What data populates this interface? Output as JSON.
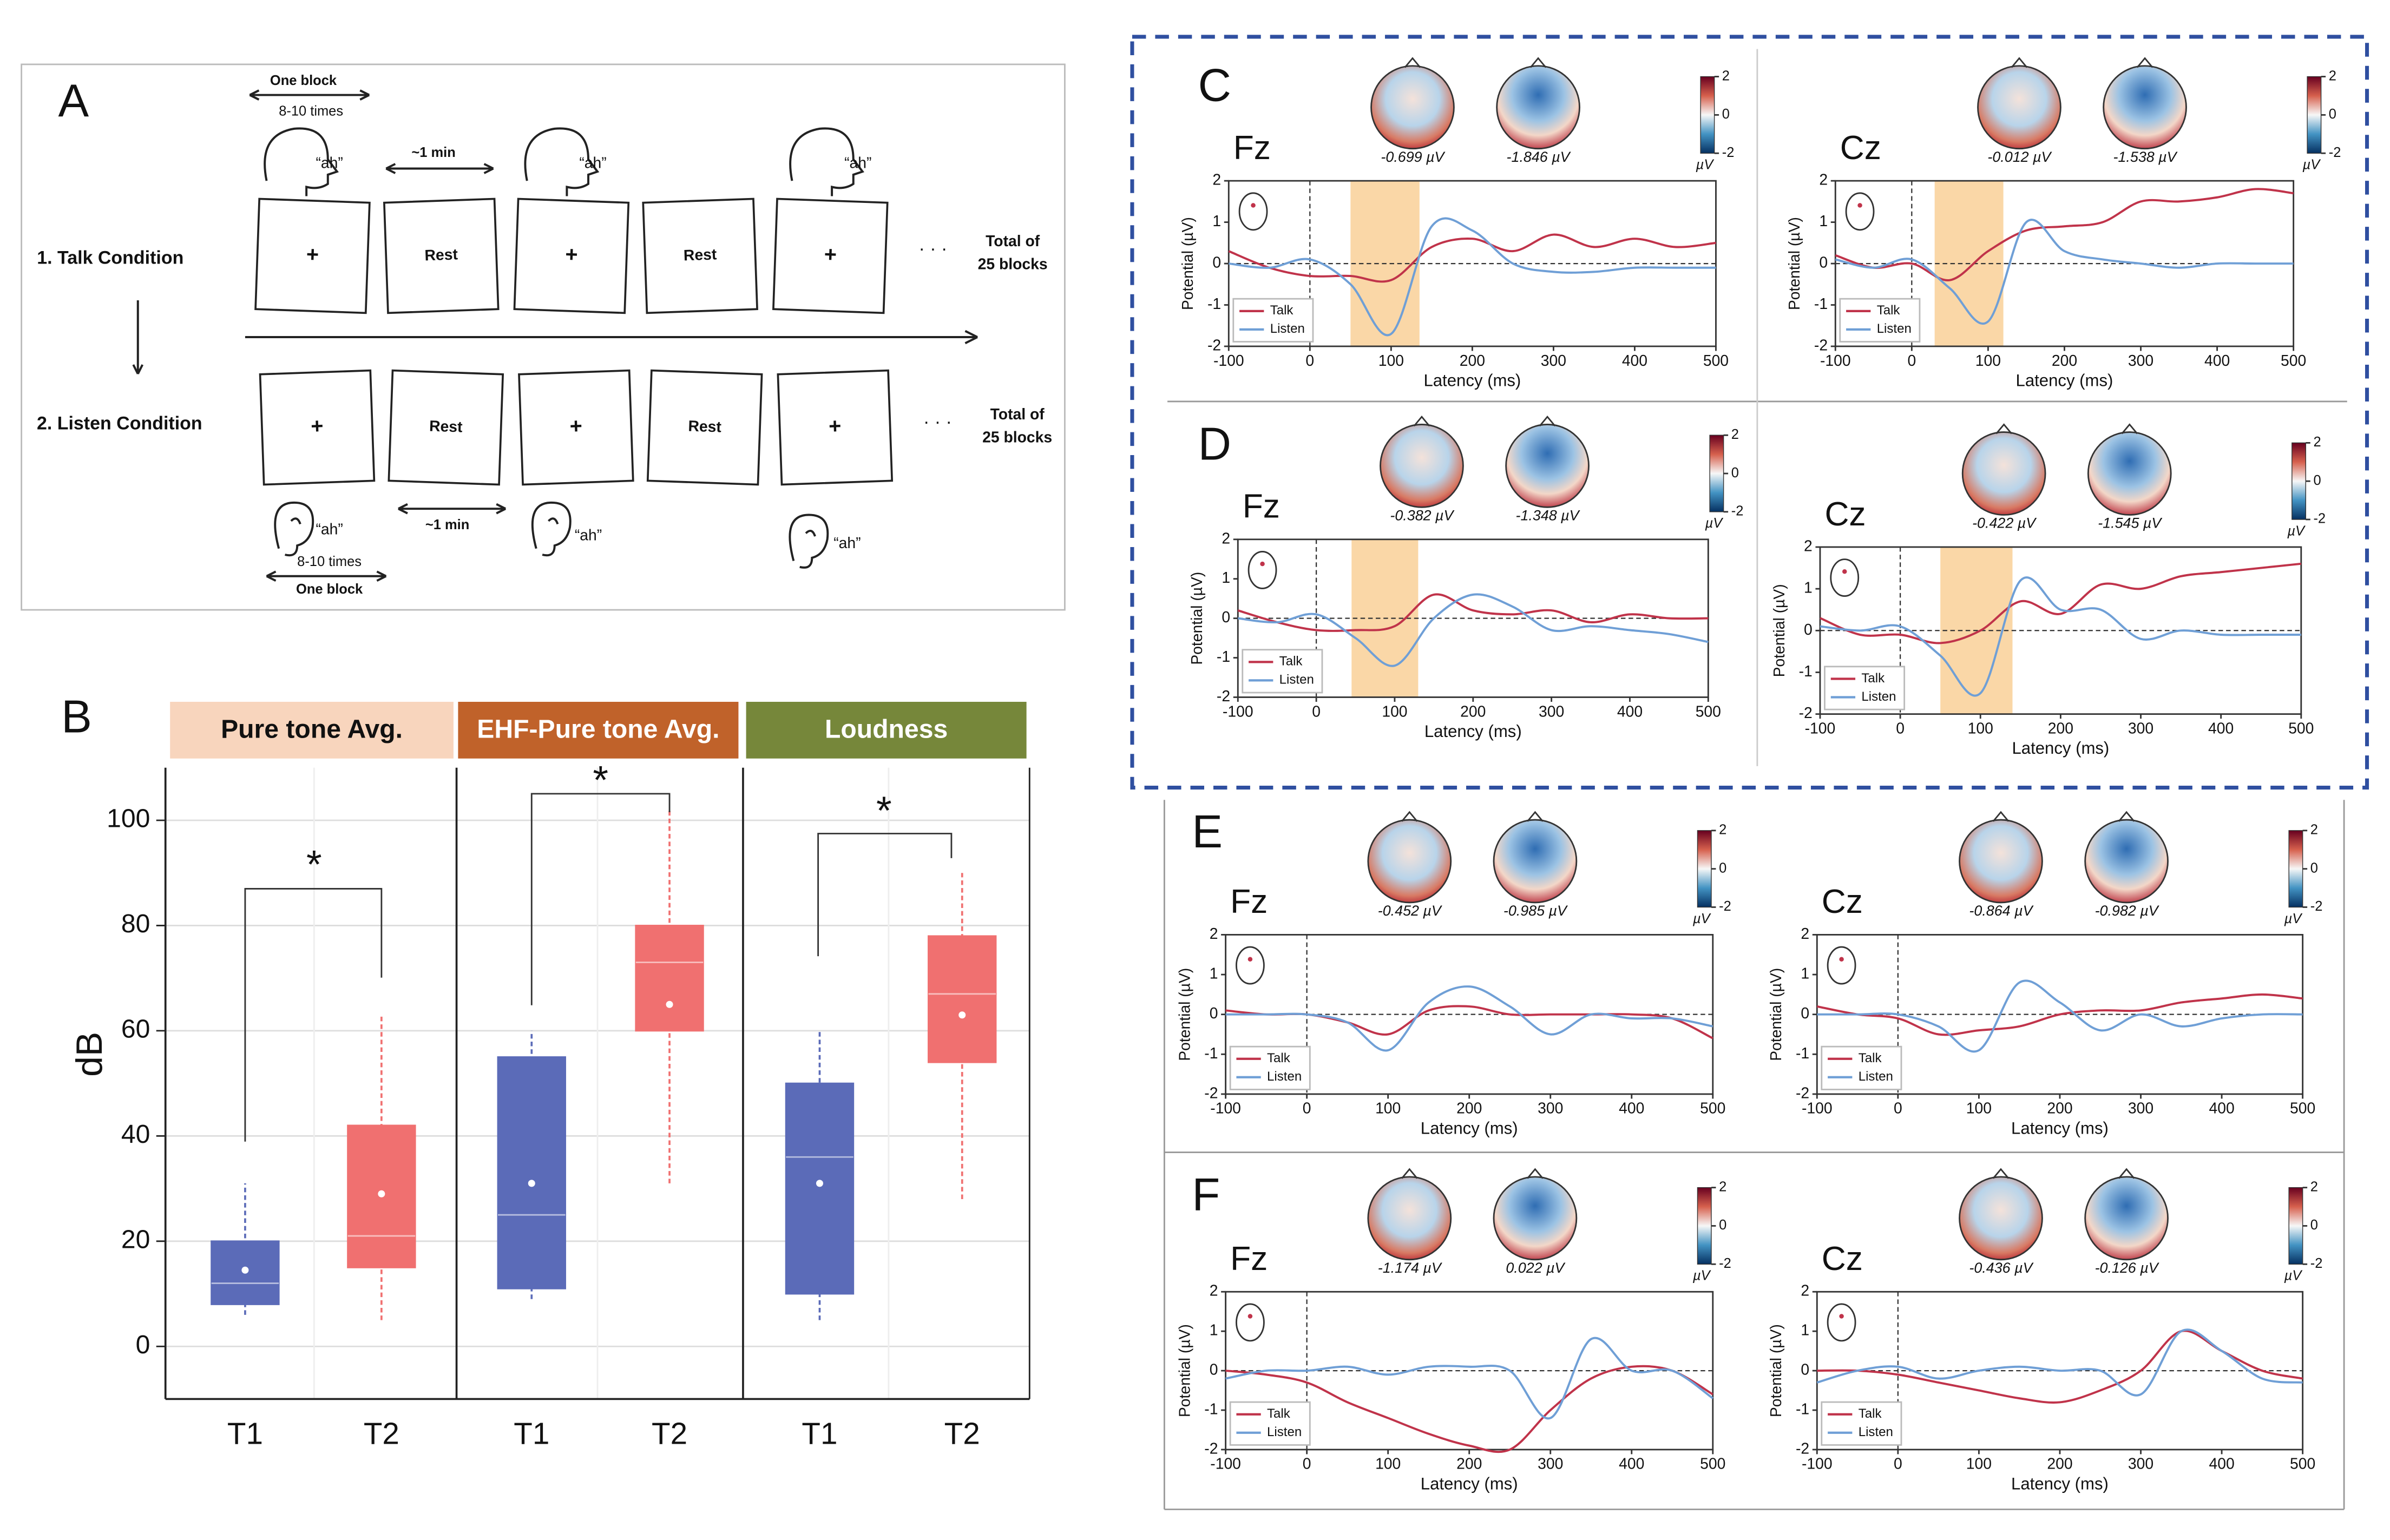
{
  "panel_labels": [
    "A",
    "B",
    "C",
    "D",
    "E",
    "F"
  ],
  "schematic": {
    "block_top": "One block",
    "times_top": "8-10 times",
    "min_top": "~1 min",
    "ah": [
      "“ah”",
      "“ah”",
      "“ah”",
      "“ah”",
      "“ah”",
      "“ah”"
    ],
    "talk": "1. Talk Condition",
    "listen": "2. Listen Condition",
    "plus": [
      "+",
      "+",
      "+",
      "+",
      "+",
      "+"
    ],
    "rest": [
      "Rest",
      "Rest",
      "Rest",
      "Rest"
    ],
    "dots": [
      "· · ·",
      "· · ·"
    ],
    "total": [
      [
        "Total of",
        "25 blocks"
      ],
      [
        "Total of",
        "25 blocks"
      ]
    ],
    "min_bottom": "~1 min",
    "times_bottom": "8-10 times",
    "block_bottom": "One block"
  },
  "chart_data": [
    {
      "type": "box",
      "ylabel": "dB",
      "ylim": [
        -10,
        110
      ],
      "yticks": [
        0,
        20,
        40,
        60,
        80,
        100
      ],
      "grid": true,
      "groups": [
        {
          "name": "Pure tone Avg.",
          "color": "#f8d5bd",
          "text_color": "#111111"
        },
        {
          "name": "EHF-Pure tone Avg.",
          "color": "#c0622a",
          "text_color": "#ffffff"
        },
        {
          "name": "Loudness",
          "color": "#76873a",
          "text_color": "#ffffff"
        }
      ],
      "categories": [
        "T1",
        "T2",
        "T1",
        "T2",
        "T1",
        "T2"
      ],
      "boxes": [
        {
          "min": 6,
          "q1": 8,
          "median": 12,
          "q3": 20,
          "max": 31,
          "mean": 14.5,
          "color": "#5b6bb8"
        },
        {
          "min": 5,
          "q1": 15,
          "median": 21,
          "q3": 42,
          "max": 63,
          "mean": 29,
          "color": "#f07070"
        },
        {
          "min": 9,
          "q1": 11,
          "median": 25,
          "q3": 55,
          "max": 60,
          "mean": 31,
          "color": "#5b6bb8"
        },
        {
          "min": 31,
          "q1": 60,
          "median": 73,
          "q3": 80,
          "max": 102,
          "mean": 65,
          "color": "#f07070"
        },
        {
          "min": 5,
          "q1": 10,
          "median": 36,
          "q3": 50,
          "max": 60,
          "mean": 31,
          "color": "#5b6bb8"
        },
        {
          "min": 28,
          "q1": 54,
          "median": 67,
          "q3": 78,
          "max": 90,
          "mean": 63,
          "color": "#f07070"
        }
      ],
      "annotations": [
        "*",
        "*",
        "*"
      ]
    },
    {
      "type": "erp",
      "title": "Fz",
      "topo_labels": [
        "-0.699 µV",
        "-1.846 µV"
      ],
      "highlight": [
        50,
        135
      ],
      "xlabel": "Latency (ms)",
      "ylabel": "Potential (µV)",
      "cbar_label": "µV",
      "cbar_lim": [
        -2,
        2
      ],
      "cbar_ticks": [
        2,
        0,
        -2
      ],
      "x": [
        -100,
        -50,
        0,
        50,
        100,
        150,
        200,
        250,
        300,
        350,
        400,
        450,
        500
      ],
      "xlim": [
        -100,
        500
      ],
      "xticks": [
        -100,
        0,
        100,
        200,
        300,
        400,
        500
      ],
      "ylim": [
        -2,
        2
      ],
      "yticks": [
        -2,
        -1,
        0,
        1,
        2
      ],
      "series": [
        {
          "name": "Talk",
          "color": "#c0334a",
          "values": [
            0.3,
            -0.1,
            -0.3,
            -0.3,
            -0.4,
            0.4,
            0.6,
            0.3,
            0.7,
            0.4,
            0.6,
            0.4,
            0.5
          ]
        },
        {
          "name": "Listen",
          "color": "#6f9fd6",
          "values": [
            0,
            -0.1,
            0.1,
            -0.5,
            -1.7,
            0.9,
            0.8,
            0,
            -0.2,
            -0.2,
            -0.1,
            -0.1,
            -0.1
          ]
        }
      ]
    },
    {
      "type": "erp",
      "title": "Cz",
      "topo_labels": [
        "-0.012 µV",
        "-1.538 µV"
      ],
      "highlight": [
        30,
        120
      ],
      "xlabel": "Latency (ms)",
      "ylabel": "Potential (µV)",
      "cbar_label": "µV",
      "cbar_lim": [
        -2,
        2
      ],
      "cbar_ticks": [
        2,
        0,
        -2
      ],
      "x": [
        -100,
        -50,
        0,
        50,
        100,
        150,
        200,
        250,
        300,
        350,
        400,
        450,
        500
      ],
      "xlim": [
        -100,
        500
      ],
      "xticks": [
        -100,
        0,
        100,
        200,
        300,
        400,
        500
      ],
      "ylim": [
        -2,
        2
      ],
      "yticks": [
        -2,
        -1,
        0,
        1,
        2
      ],
      "series": [
        {
          "name": "Talk",
          "color": "#c0334a",
          "values": [
            0.2,
            -0.1,
            0,
            -0.4,
            0.3,
            0.8,
            0.9,
            1.0,
            1.5,
            1.5,
            1.6,
            1.8,
            1.7
          ]
        },
        {
          "name": "Listen",
          "color": "#6f9fd6",
          "values": [
            0.1,
            -0.1,
            0.1,
            -0.6,
            -1.4,
            1.0,
            0.3,
            0.1,
            0,
            -0.1,
            0,
            0,
            0
          ]
        }
      ]
    },
    {
      "type": "erp",
      "title": "Fz",
      "topo_labels": [
        "-0.382 µV",
        "-1.348 µV"
      ],
      "highlight": [
        45,
        130
      ],
      "xlabel": "Latency (ms)",
      "ylabel": "Potential (µV)",
      "cbar_label": "µV",
      "cbar_lim": [
        -2,
        2
      ],
      "cbar_ticks": [
        2,
        0,
        -2
      ],
      "x": [
        -100,
        -50,
        0,
        50,
        100,
        150,
        200,
        250,
        300,
        350,
        400,
        450,
        500
      ],
      "xlim": [
        -100,
        500
      ],
      "xticks": [
        -100,
        0,
        100,
        200,
        300,
        400,
        500
      ],
      "ylim": [
        -2,
        2
      ],
      "yticks": [
        -2,
        -1,
        0,
        1,
        2
      ],
      "series": [
        {
          "name": "Talk",
          "color": "#c0334a",
          "values": [
            0.2,
            -0.1,
            -0.3,
            -0.3,
            -0.2,
            0.6,
            0.2,
            0.1,
            0.2,
            -0.1,
            0.1,
            0,
            0
          ]
        },
        {
          "name": "Listen",
          "color": "#6f9fd6",
          "values": [
            0,
            -0.1,
            0.1,
            -0.5,
            -1.2,
            0,
            0.6,
            0.3,
            -0.3,
            -0.2,
            -0.3,
            -0.4,
            -0.6
          ]
        }
      ]
    },
    {
      "type": "erp",
      "title": "Cz",
      "topo_labels": [
        "-0.422 µV",
        "-1.545 µV"
      ],
      "highlight": [
        50,
        140
      ],
      "xlabel": "Latency (ms)",
      "ylabel": "Potential (µV)",
      "cbar_label": "µV",
      "cbar_lim": [
        -2,
        2
      ],
      "cbar_ticks": [
        2,
        0,
        -2
      ],
      "x": [
        -100,
        -50,
        0,
        50,
        100,
        150,
        200,
        250,
        300,
        350,
        400,
        450,
        500
      ],
      "xlim": [
        -100,
        500
      ],
      "xticks": [
        -100,
        0,
        100,
        200,
        300,
        400,
        500
      ],
      "ylim": [
        -2,
        2
      ],
      "yticks": [
        -2,
        -1,
        0,
        1,
        2
      ],
      "series": [
        {
          "name": "Talk",
          "color": "#c0334a",
          "values": [
            0.3,
            -0.1,
            -0.1,
            -0.3,
            0,
            0.7,
            0.4,
            1.1,
            1.0,
            1.3,
            1.4,
            1.5,
            1.6
          ]
        },
        {
          "name": "Listen",
          "color": "#6f9fd6",
          "values": [
            0.1,
            0,
            0.1,
            -0.6,
            -1.5,
            1.2,
            0.5,
            0.5,
            -0.2,
            0,
            -0.1,
            -0.1,
            -0.1
          ]
        }
      ]
    },
    {
      "type": "erp",
      "title": "Fz",
      "topo_labels": [
        "-0.452 µV",
        "-0.985 µV"
      ],
      "xlabel": "Latency (ms)",
      "ylabel": "Potential (µV)",
      "cbar_label": "µV",
      "cbar_lim": [
        -2,
        2
      ],
      "cbar_ticks": [
        2,
        0,
        -2
      ],
      "x": [
        -100,
        -50,
        0,
        50,
        100,
        150,
        200,
        250,
        300,
        350,
        400,
        450,
        500
      ],
      "xlim": [
        -100,
        500
      ],
      "xticks": [
        -100,
        0,
        100,
        200,
        300,
        400,
        500
      ],
      "ylim": [
        -2,
        2
      ],
      "yticks": [
        -2,
        -1,
        0,
        1,
        2
      ],
      "series": [
        {
          "name": "Talk",
          "color": "#c0334a",
          "values": [
            0.1,
            0,
            0,
            -0.2,
            -0.5,
            0.1,
            0.2,
            0,
            0,
            0,
            0,
            -0.1,
            -0.6
          ]
        },
        {
          "name": "Listen",
          "color": "#6f9fd6",
          "values": [
            0,
            0,
            0,
            -0.2,
            -0.9,
            0.3,
            0.7,
            0.2,
            -0.5,
            0,
            -0.1,
            -0.1,
            -0.3
          ]
        }
      ]
    },
    {
      "type": "erp",
      "title": "Cz",
      "topo_labels": [
        "-0.864 µV",
        "-0.982 µV"
      ],
      "xlabel": "Latency (ms)",
      "ylabel": "Potential (µV)",
      "cbar_label": "µV",
      "cbar_lim": [
        -2,
        2
      ],
      "cbar_ticks": [
        2,
        0,
        -2
      ],
      "x": [
        -100,
        -50,
        0,
        50,
        100,
        150,
        200,
        250,
        300,
        350,
        400,
        450,
        500
      ],
      "xlim": [
        -100,
        500
      ],
      "xticks": [
        -100,
        0,
        100,
        200,
        300,
        400,
        500
      ],
      "ylim": [
        -2,
        2
      ],
      "yticks": [
        -2,
        -1,
        0,
        1,
        2
      ],
      "series": [
        {
          "name": "Talk",
          "color": "#c0334a",
          "values": [
            0.2,
            0,
            -0.1,
            -0.5,
            -0.4,
            -0.3,
            0,
            0.1,
            0.1,
            0.3,
            0.4,
            0.5,
            0.4
          ]
        },
        {
          "name": "Listen",
          "color": "#6f9fd6",
          "values": [
            0,
            0,
            0,
            -0.3,
            -0.9,
            0.8,
            0.3,
            -0.4,
            0,
            -0.3,
            -0.1,
            0,
            0
          ]
        }
      ]
    },
    {
      "type": "erp",
      "title": "Fz",
      "topo_labels": [
        "-1.174 µV",
        "0.022 µV"
      ],
      "xlabel": "Latency (ms)",
      "ylabel": "Potential (µV)",
      "cbar_label": "µV",
      "cbar_lim": [
        -2,
        2
      ],
      "cbar_ticks": [
        2,
        0,
        -2
      ],
      "x": [
        -100,
        -50,
        0,
        50,
        100,
        150,
        200,
        250,
        300,
        350,
        400,
        450,
        500
      ],
      "xlim": [
        -100,
        500
      ],
      "xticks": [
        -100,
        0,
        100,
        200,
        300,
        400,
        500
      ],
      "ylim": [
        -2,
        2
      ],
      "yticks": [
        -2,
        -1,
        0,
        1,
        2
      ],
      "series": [
        {
          "name": "Talk",
          "color": "#c0334a",
          "values": [
            0,
            -0.1,
            -0.3,
            -0.8,
            -1.2,
            -1.6,
            -1.9,
            -2.0,
            -1.0,
            -0.2,
            0.1,
            0,
            -0.6
          ]
        },
        {
          "name": "Listen",
          "color": "#6f9fd6",
          "values": [
            -0.2,
            0,
            0,
            0.1,
            -0.1,
            0.1,
            0.1,
            0,
            -1.2,
            0.8,
            0,
            0,
            -0.7
          ]
        }
      ]
    },
    {
      "type": "erp",
      "title": "Cz",
      "topo_labels": [
        "-0.436 µV",
        "-0.126 µV"
      ],
      "xlabel": "Latency (ms)",
      "ylabel": "Potential (µV)",
      "cbar_label": "µV",
      "cbar_lim": [
        -2,
        2
      ],
      "cbar_ticks": [
        2,
        0,
        -2
      ],
      "x": [
        -100,
        -50,
        0,
        50,
        100,
        150,
        200,
        250,
        300,
        350,
        400,
        450,
        500
      ],
      "xlim": [
        -100,
        500
      ],
      "xticks": [
        -100,
        0,
        100,
        200,
        300,
        400,
        500
      ],
      "ylim": [
        -2,
        2
      ],
      "yticks": [
        -2,
        -1,
        0,
        1,
        2
      ],
      "series": [
        {
          "name": "Talk",
          "color": "#c0334a",
          "values": [
            0,
            0,
            -0.1,
            -0.3,
            -0.5,
            -0.7,
            -0.8,
            -0.5,
            0,
            1.0,
            0.5,
            0,
            -0.2
          ]
        },
        {
          "name": "Listen",
          "color": "#6f9fd6",
          "values": [
            -0.3,
            0,
            0.1,
            -0.2,
            0,
            0.1,
            0,
            0,
            -0.6,
            1.0,
            0.5,
            -0.2,
            -0.3
          ]
        }
      ]
    }
  ]
}
